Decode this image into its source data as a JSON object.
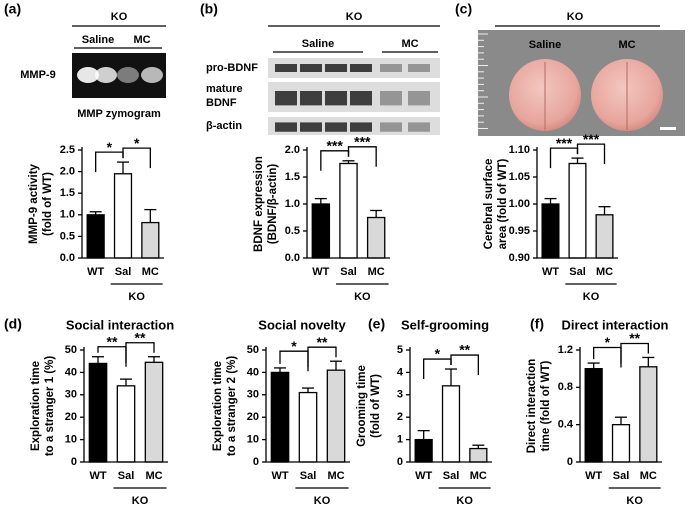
{
  "chart_data": [
    {
      "type": "bar",
      "panel": "(a)",
      "inset": {
        "kind": "zymogram",
        "group": "KO",
        "lanes": [
          "Saline",
          "MC"
        ],
        "rows": [
          "MMP-9"
        ],
        "caption": "MMP zymogram"
      },
      "categories": [
        "WT",
        "Sal",
        "MC"
      ],
      "group": "KO",
      "values": [
        1.0,
        1.95,
        0.82
      ],
      "errors": [
        0.07,
        0.27,
        0.3
      ],
      "colors": [
        "#000000",
        "#ffffff",
        "#d9d9d9"
      ],
      "ylabel": [
        "MMP-9 activity",
        "(fold of WT)"
      ],
      "ylim": [
        0,
        2.5
      ],
      "yticks": [
        {
          "value": 0,
          "label": "0.0"
        },
        0.5,
        {
          "value": 1,
          "label": "1.0"
        },
        1.5,
        {
          "value": 2,
          "label": "2.0"
        },
        2.5
      ],
      "significance": [
        "*",
        "*"
      ]
    },
    {
      "type": "bar",
      "panel": "(b)",
      "inset": {
        "kind": "western",
        "group": "KO",
        "lanes": [
          "Saline",
          "MC"
        ],
        "rows": [
          "pro-BDNF",
          "mature",
          "BDNF",
          "β-actin"
        ]
      },
      "categories": [
        "WT",
        "Sal",
        "MC"
      ],
      "group": "KO",
      "values": [
        1.0,
        1.75,
        0.75
      ],
      "errors": [
        0.1,
        0.05,
        0.13
      ],
      "colors": [
        "#000000",
        "#ffffff",
        "#d9d9d9"
      ],
      "ylabel": [
        "BDNF expression",
        "(BDNF/β-actin)"
      ],
      "ylim": [
        0,
        2
      ],
      "yticks": [
        {
          "value": 0,
          "label": "0.0"
        },
        0.5,
        {
          "value": 1,
          "label": "1.0"
        },
        1.5,
        {
          "value": 2,
          "label": "2.0"
        }
      ],
      "significance": [
        "***",
        "***"
      ]
    },
    {
      "type": "bar",
      "panel": "(c)",
      "inset": {
        "kind": "brain",
        "group": "KO",
        "lanes": [
          "Saline",
          "MC"
        ]
      },
      "categories": [
        "WT",
        "Sal",
        "MC"
      ],
      "group": "KO",
      "values": [
        1.0,
        1.075,
        0.98
      ],
      "errors": [
        0.01,
        0.01,
        0.015
      ],
      "colors": [
        "#000000",
        "#ffffff",
        "#d9d9d9"
      ],
      "ylabel": [
        "Cerebral surface",
        "area (fold of WT)"
      ],
      "ylim": [
        0.9,
        1.1
      ],
      "yticks": [
        {
          "value": 0.9,
          "label": "0.90"
        },
        0.95,
        {
          "value": 1,
          "label": "1.00"
        },
        1.05,
        {
          "value": 1.1,
          "label": "1.10"
        }
      ],
      "significance": [
        "***",
        "***"
      ]
    },
    {
      "type": "bar",
      "panel": "(d)",
      "title": "Social interaction",
      "categories": [
        "WT",
        "Sal",
        "MC"
      ],
      "group": "KO",
      "values": [
        44,
        34,
        44.5
      ],
      "errors": [
        3,
        3,
        2.5
      ],
      "colors": [
        "#000000",
        "#ffffff",
        "#d9d9d9"
      ],
      "ylabel": [
        "Exploration time",
        "to a stranger 1 (%)"
      ],
      "ylim": [
        0,
        50
      ],
      "yticks": [
        0,
        10,
        20,
        30,
        40,
        50
      ],
      "significance": [
        "**",
        "**"
      ]
    },
    {
      "type": "bar",
      "title": "Social novelty",
      "categories": [
        "WT",
        "Sal",
        "MC"
      ],
      "group": "KO",
      "values": [
        40,
        31,
        41
      ],
      "errors": [
        2,
        2,
        4
      ],
      "colors": [
        "#000000",
        "#ffffff",
        "#d9d9d9"
      ],
      "ylabel": [
        "Exploration time",
        "to a stranger 2 (%)"
      ],
      "ylim": [
        0,
        50
      ],
      "yticks": [
        0,
        10,
        20,
        30,
        40,
        50
      ],
      "significance": [
        "*",
        "**"
      ]
    },
    {
      "type": "bar",
      "panel": "(e)",
      "title": "Self-grooming",
      "categories": [
        "WT",
        "Sal",
        "MC"
      ],
      "group": "KO",
      "values": [
        1.0,
        3.4,
        0.6
      ],
      "errors": [
        0.4,
        0.75,
        0.15
      ],
      "colors": [
        "#000000",
        "#ffffff",
        "#d9d9d9"
      ],
      "ylabel": [
        "Grooming time",
        "(fold of WT)"
      ],
      "ylim": [
        0,
        5
      ],
      "yticks": [
        0,
        1,
        2,
        3,
        4,
        5
      ],
      "significance": [
        "*",
        "**"
      ]
    },
    {
      "type": "bar",
      "panel": "(f)",
      "title": "Direct interaction",
      "categories": [
        "WT",
        "Sal",
        "MC"
      ],
      "group": "KO",
      "values": [
        1.0,
        0.4,
        1.02
      ],
      "errors": [
        0.06,
        0.08,
        0.1
      ],
      "colors": [
        "#000000",
        "#ffffff",
        "#d9d9d9"
      ],
      "ylabel": [
        "Direct interaction",
        "time (fold of WT)"
      ],
      "ylim": [
        0,
        1.2
      ],
      "yticks": [
        0,
        0.4,
        0.8,
        1.2
      ],
      "significance": [
        "*",
        "**"
      ]
    }
  ]
}
